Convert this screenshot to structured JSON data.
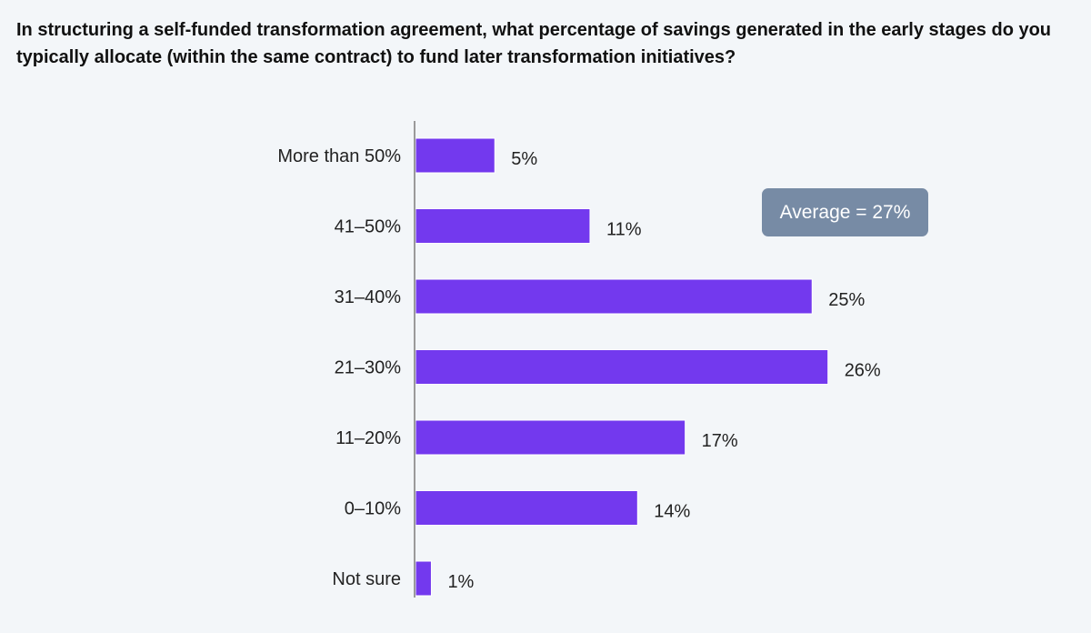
{
  "chart_data": {
    "type": "bar",
    "orientation": "horizontal",
    "title": "In structuring a self-funded transformation agreement, what percentage of savings generated in the early stages do you typically allocate (within the same contract) to fund later transformation initiatives?",
    "categories": [
      "More than 50%",
      "41–50%",
      "31–40%",
      "21–30%",
      "11–20%",
      "0–10%",
      "Not sure"
    ],
    "values": [
      5,
      11,
      25,
      26,
      17,
      14,
      1
    ],
    "value_labels": [
      "5%",
      "11%",
      "25%",
      "26%",
      "17%",
      "14%",
      "1%"
    ],
    "xlabel": "",
    "ylabel": "",
    "xlim": [
      0,
      30
    ],
    "grid": false,
    "annotation": "Average = 27%",
    "bar_color": "#7339ee",
    "annotation_color": "#778ba5"
  }
}
